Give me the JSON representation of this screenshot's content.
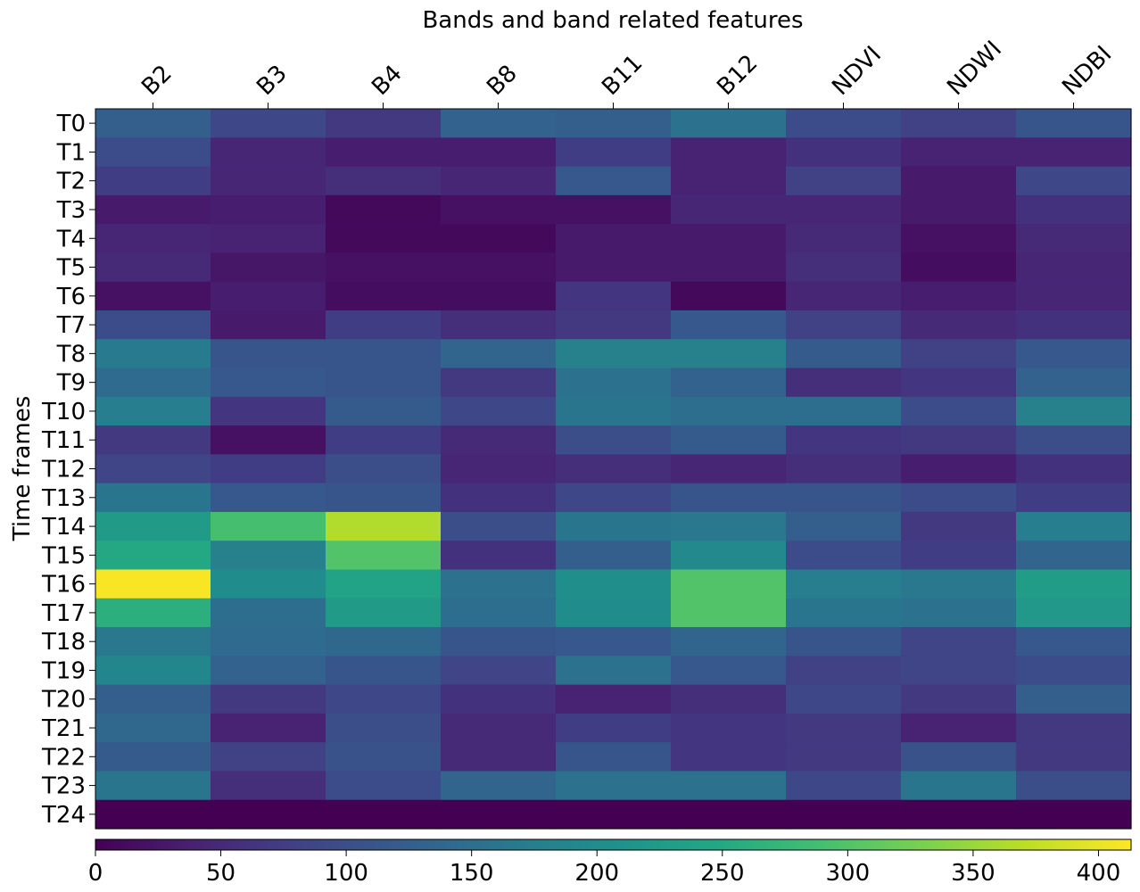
{
  "chart_data": {
    "type": "heatmap",
    "title": "Bands and band related features",
    "xlabel": "",
    "ylabel": "Time frames",
    "x_axis_position": "top",
    "colormap": "viridis",
    "grid": false,
    "columns": [
      "B2",
      "B3",
      "B4",
      "B8",
      "B11",
      "B12",
      "NDVI",
      "NDWI",
      "NDBI"
    ],
    "rows": [
      "T0",
      "T1",
      "T2",
      "T3",
      "T4",
      "T5",
      "T6",
      "T7",
      "T8",
      "T9",
      "T10",
      "T11",
      "T12",
      "T13",
      "T14",
      "T15",
      "T16",
      "T17",
      "T18",
      "T19",
      "T20",
      "T21",
      "T22",
      "T23",
      "T24"
    ],
    "values": [
      [
        125,
        90,
        70,
        130,
        125,
        155,
        95,
        80,
        110
      ],
      [
        95,
        45,
        35,
        35,
        75,
        40,
        60,
        40,
        40
      ],
      [
        75,
        45,
        55,
        45,
        115,
        40,
        80,
        30,
        90
      ],
      [
        30,
        35,
        10,
        20,
        20,
        45,
        45,
        30,
        60
      ],
      [
        45,
        40,
        10,
        10,
        30,
        30,
        50,
        20,
        50
      ],
      [
        50,
        25,
        20,
        20,
        30,
        30,
        55,
        15,
        45
      ],
      [
        20,
        35,
        15,
        15,
        65,
        10,
        45,
        35,
        45
      ],
      [
        95,
        30,
        75,
        55,
        70,
        115,
        80,
        50,
        60
      ],
      [
        170,
        110,
        110,
        135,
        180,
        180,
        120,
        80,
        115
      ],
      [
        145,
        115,
        110,
        70,
        155,
        130,
        55,
        65,
        130
      ],
      [
        175,
        65,
        120,
        90,
        160,
        150,
        150,
        95,
        180
      ],
      [
        70,
        20,
        75,
        50,
        100,
        120,
        65,
        70,
        100
      ],
      [
        85,
        75,
        100,
        45,
        55,
        45,
        55,
        35,
        60
      ],
      [
        160,
        115,
        110,
        60,
        90,
        110,
        110,
        95,
        75
      ],
      [
        225,
        290,
        365,
        100,
        160,
        165,
        125,
        70,
        175
      ],
      [
        250,
        180,
        300,
        60,
        125,
        195,
        95,
        75,
        135
      ],
      [
        410,
        200,
        240,
        155,
        205,
        300,
        175,
        165,
        230
      ],
      [
        260,
        150,
        225,
        150,
        200,
        300,
        160,
        155,
        220
      ],
      [
        165,
        145,
        140,
        110,
        115,
        135,
        110,
        85,
        115
      ],
      [
        190,
        130,
        110,
        85,
        155,
        115,
        80,
        85,
        95
      ],
      [
        125,
        70,
        90,
        60,
        40,
        55,
        90,
        70,
        125
      ],
      [
        140,
        40,
        100,
        50,
        75,
        65,
        70,
        40,
        70
      ],
      [
        120,
        80,
        105,
        50,
        110,
        65,
        70,
        105,
        70
      ],
      [
        160,
        55,
        95,
        135,
        155,
        155,
        90,
        160,
        100
      ],
      [
        0,
        0,
        0,
        0,
        0,
        0,
        0,
        0,
        0
      ]
    ],
    "colorbar": {
      "orientation": "horizontal",
      "range": [
        0,
        413
      ],
      "ticks": [
        0,
        50,
        100,
        150,
        200,
        250,
        300,
        350,
        400
      ]
    }
  }
}
